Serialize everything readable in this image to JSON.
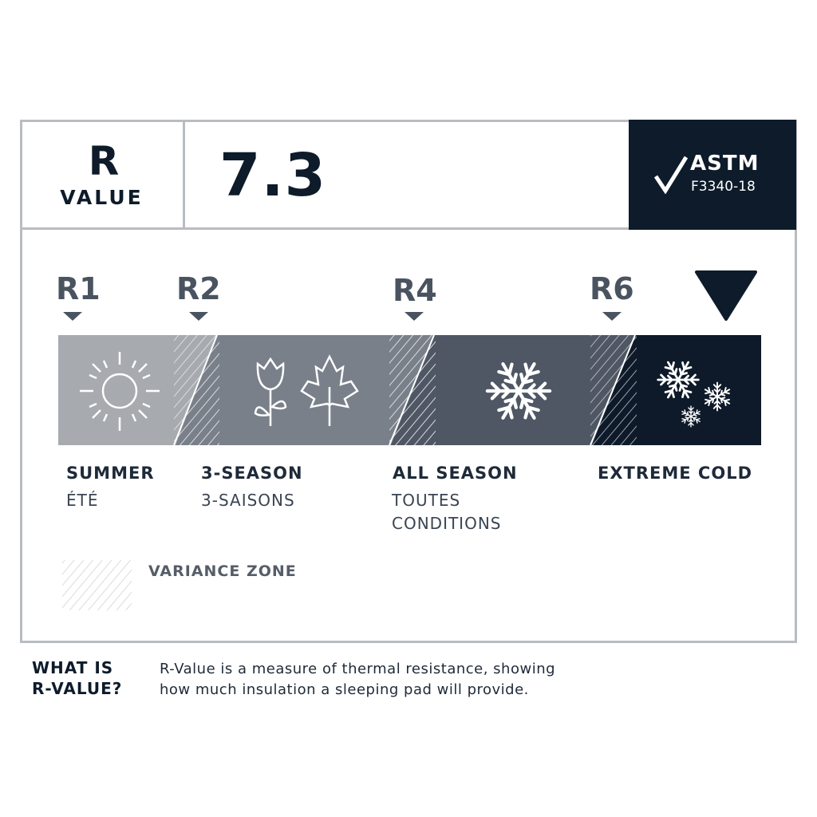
{
  "header": {
    "r_letter": "R",
    "value_label": "VALUE",
    "rating": "7.3",
    "certification": {
      "name": "ASTM",
      "code": "F3340-18",
      "icon": "checkmark-icon"
    }
  },
  "scale": {
    "markers": [
      "R1",
      "R2",
      "R4",
      "R6"
    ],
    "current_indicator_value": 7.3,
    "segments": [
      {
        "en": "SUMMER",
        "fr": "ÉTÉ",
        "color": "#a7abb0",
        "icon": "sun-icon"
      },
      {
        "en": "3-SEASON",
        "fr": "3-SAISONS",
        "color": "#7a808a",
        "icon": "tulip-and-maple-leaf-icon"
      },
      {
        "en": "ALL SEASON",
        "fr_lines": [
          "TOUTES",
          "CONDITIONS"
        ],
        "color": "#4f5764",
        "icon": "snowflake-icon"
      },
      {
        "en": "EXTREME COLD",
        "color": "#0e1a29",
        "icon": "snowflakes-icon"
      }
    ]
  },
  "legend": {
    "variance_zone": "VARIANCE ZONE"
  },
  "footer": {
    "question_lines": [
      "WHAT IS",
      "R-VALUE?"
    ],
    "description_lines": [
      "R-Value is a measure of thermal resistance, showing",
      "how much insulation a sleeping pad will provide."
    ]
  },
  "colors": {
    "dark": "#0d1b2a",
    "border": "#b9bcc0",
    "marker_text": "#4a5360"
  }
}
